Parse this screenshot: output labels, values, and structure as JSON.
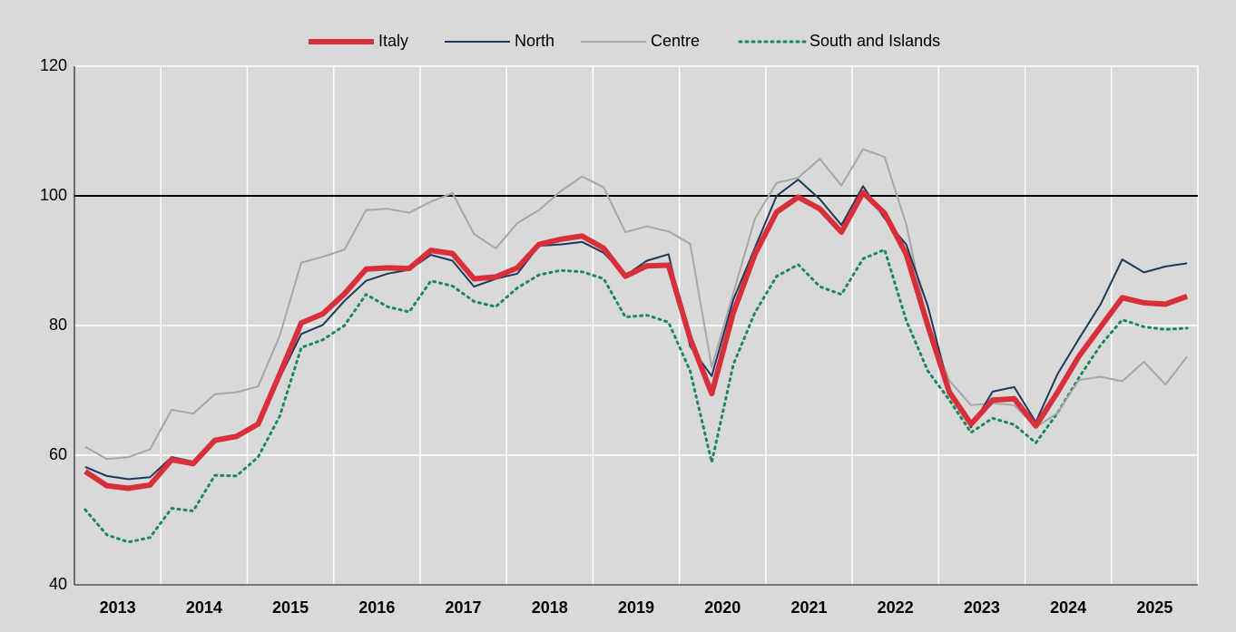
{
  "chart_data": {
    "type": "line",
    "categories": [
      "2013",
      null,
      null,
      null,
      "2014",
      null,
      null,
      null,
      "2015",
      null,
      null,
      null,
      "2016",
      null,
      null,
      null,
      "2017",
      null,
      null,
      null,
      "2018",
      null,
      null,
      null,
      "2019",
      null,
      null,
      null,
      "2020",
      null,
      null,
      null,
      "2021",
      null,
      null,
      null,
      "2022",
      null,
      null,
      null,
      "2023",
      null,
      null,
      null,
      "2024",
      null,
      null,
      null,
      "2025",
      null,
      null,
      null
    ],
    "series": [
      {
        "name": "Italy",
        "color": "#d7303a",
        "linewidth": 6,
        "style": "solid",
        "values": [
          57.5,
          55.3,
          54.9,
          55.4,
          59.3,
          58.7,
          62.3,
          62.9,
          64.8,
          72.5,
          80.4,
          81.8,
          84.9,
          88.7,
          88.9,
          88.8,
          91.6,
          91.1,
          87.2,
          87.5,
          88.9,
          92.5,
          93.3,
          93.8,
          91.9,
          87.6,
          89.2,
          89.3,
          78,
          69.5,
          82,
          91,
          97.5,
          99.8,
          98,
          94.4,
          100.5,
          97.3,
          91,
          80,
          69.7,
          64.8,
          68.5,
          68.7,
          64.5,
          69.7,
          75.3,
          79.8,
          84.3,
          83.5,
          83.3,
          84.5
        ]
      },
      {
        "name": "North",
        "color": "#1c3a5c",
        "linewidth": 2,
        "style": "solid",
        "values": [
          58.2,
          56.8,
          56.3,
          56.6,
          59.7,
          59,
          62.1,
          62.8,
          64.7,
          71.9,
          78.7,
          80.1,
          83.8,
          86.9,
          88,
          88.6,
          90.9,
          90,
          86,
          87.2,
          88,
          92.3,
          92.5,
          92.9,
          91.2,
          87.7,
          90,
          91,
          76.8,
          72.2,
          84,
          92,
          100,
          102.5,
          99.5,
          95.5,
          101.5,
          96.5,
          92.5,
          83,
          70,
          64.3,
          69.8,
          70.5,
          65.1,
          72.5,
          78,
          83.3,
          90.2,
          88.2,
          89.1,
          89.6
        ]
      },
      {
        "name": "Centre",
        "color": "#a6a6a6",
        "linewidth": 2,
        "style": "solid",
        "values": [
          61.3,
          59.4,
          59.7,
          60.9,
          67,
          66.4,
          69.4,
          69.7,
          70.6,
          78.4,
          89.7,
          90.6,
          91.7,
          97.8,
          98,
          97.4,
          99.1,
          100.4,
          94.1,
          91.9,
          95.8,
          97.8,
          100.7,
          103,
          101.3,
          94.4,
          95.3,
          94.5,
          92.6,
          73.6,
          85,
          96.5,
          102,
          102.8,
          105.7,
          101.6,
          107.2,
          106,
          95.6,
          80,
          71.5,
          67.7,
          68,
          67.7,
          64.3,
          66.5,
          71.6,
          72.1,
          71.4,
          74.4,
          70.9,
          75.2
        ]
      },
      {
        "name": "South and Islands",
        "color": "#1b8a5a",
        "linewidth": 3,
        "style": "dotted",
        "values": [
          51.6,
          47.7,
          46.6,
          47.3,
          51.8,
          51.4,
          56.9,
          56.8,
          59.7,
          66,
          76.6,
          77.8,
          80,
          84.8,
          82.9,
          82.1,
          86.9,
          86.1,
          83.7,
          82.9,
          85.8,
          87.8,
          88.5,
          88.3,
          87.2,
          81.3,
          81.6,
          80.5,
          73,
          58.9,
          74,
          82,
          87.6,
          89.4,
          86,
          84.8,
          90.3,
          91.7,
          80.8,
          73,
          68.5,
          63.5,
          65.7,
          64.7,
          61.9,
          66.5,
          72,
          77,
          80.9,
          79.8,
          79.4,
          79.6
        ]
      }
    ],
    "ylim": [
      40,
      120
    ],
    "yticks": [
      40,
      60,
      80,
      100,
      120
    ],
    "hline": 100,
    "grid": true,
    "legend": "top"
  }
}
